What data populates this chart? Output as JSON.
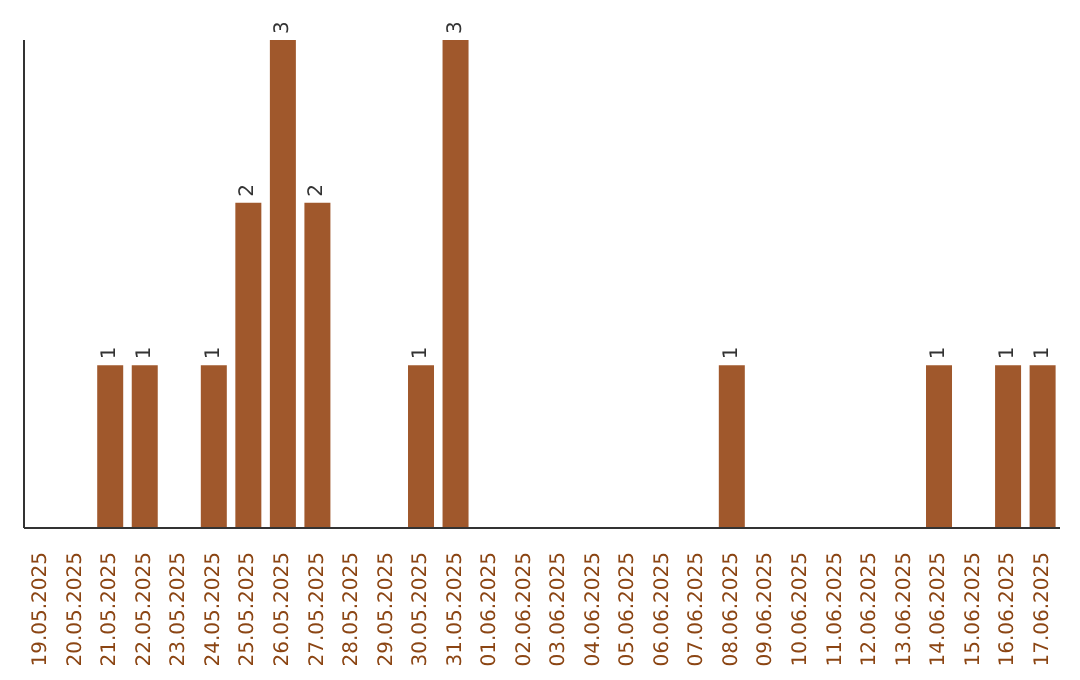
{
  "chart_data": {
    "type": "bar",
    "categories": [
      "19.05.2025",
      "20.05.2025",
      "21.05.2025",
      "22.05.2025",
      "23.05.2025",
      "24.05.2025",
      "25.05.2025",
      "26.05.2025",
      "27.05.2025",
      "28.05.2025",
      "29.05.2025",
      "30.05.2025",
      "31.05.2025",
      "01.06.2025",
      "02.06.2025",
      "03.06.2025",
      "04.06.2025",
      "05.06.2025",
      "06.06.2025",
      "07.06.2025",
      "08.06.2025",
      "09.06.2025",
      "10.06.2025",
      "11.06.2025",
      "12.06.2025",
      "13.06.2025",
      "14.06.2025",
      "15.06.2025",
      "16.06.2025",
      "17.06.2025"
    ],
    "values": [
      0,
      0,
      1,
      1,
      0,
      1,
      2,
      3,
      2,
      0,
      0,
      1,
      3,
      0,
      0,
      0,
      0,
      0,
      0,
      0,
      1,
      0,
      0,
      0,
      0,
      0,
      1,
      0,
      1,
      1
    ],
    "value_labels": [
      null,
      null,
      "1",
      "1",
      null,
      "1",
      "2",
      "3",
      "2",
      null,
      null,
      "1",
      "3",
      null,
      null,
      null,
      null,
      null,
      null,
      null,
      "1",
      null,
      null,
      null,
      null,
      null,
      "1",
      null,
      "1",
      "1"
    ],
    "color": "#a0582c"
  }
}
